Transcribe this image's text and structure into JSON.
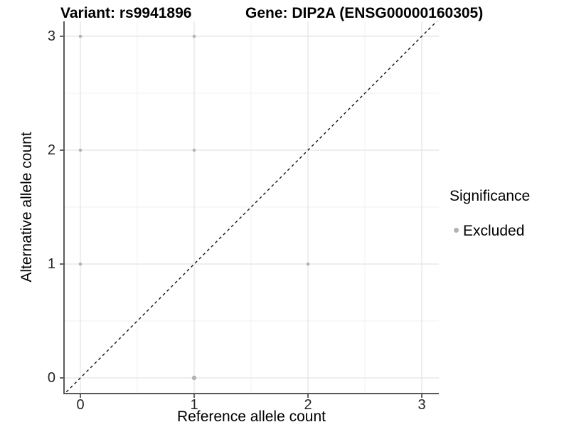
{
  "titles": {
    "variant": "Variant: rs9941896",
    "gene": "Gene: DIP2A (ENSG00000160305)"
  },
  "axes": {
    "x_label": "Reference allele count",
    "y_label": "Alternative allele count"
  },
  "legend": {
    "title": "Significance",
    "items": [
      {
        "label": "Excluded",
        "color": "#b3b3b3"
      }
    ]
  },
  "colors": {
    "background": "#ffffff",
    "point": "#b3b3b3",
    "grid_major": "#e4e4e4",
    "grid_minor": "#f1f1f1",
    "axis_line": "#595959",
    "tick_mark": "#333333",
    "identity_line": "#111111"
  },
  "chart_data": {
    "type": "scatter",
    "title": "Variant: rs9941896 — Gene: DIP2A (ENSG00000160305)",
    "xlabel": "Reference allele count",
    "ylabel": "Alternative allele count",
    "xlim": [
      -0.15,
      3.15
    ],
    "ylim": [
      -0.15,
      3.15
    ],
    "x_ticks": [
      0,
      1,
      2,
      3
    ],
    "y_ticks": [
      0,
      1,
      2,
      3
    ],
    "x_tick_labels": [
      "0",
      "1",
      "2",
      "3"
    ],
    "y_tick_labels": [
      "0",
      "1",
      "2",
      "3"
    ],
    "grid": true,
    "legend_position": "right",
    "reference_line": "y = x dashed identity line from lower-left to upper-right",
    "series": [
      {
        "name": "Excluded",
        "color": "#b3b3b3",
        "points": [
          {
            "x": 0,
            "y": 1
          },
          {
            "x": 0,
            "y": 2
          },
          {
            "x": 0,
            "y": 3
          },
          {
            "x": 1,
            "y": 0,
            "r": 3.2
          },
          {
            "x": 1,
            "y": 2
          },
          {
            "x": 1,
            "y": 3
          },
          {
            "x": 2,
            "y": 1
          }
        ]
      }
    ]
  }
}
